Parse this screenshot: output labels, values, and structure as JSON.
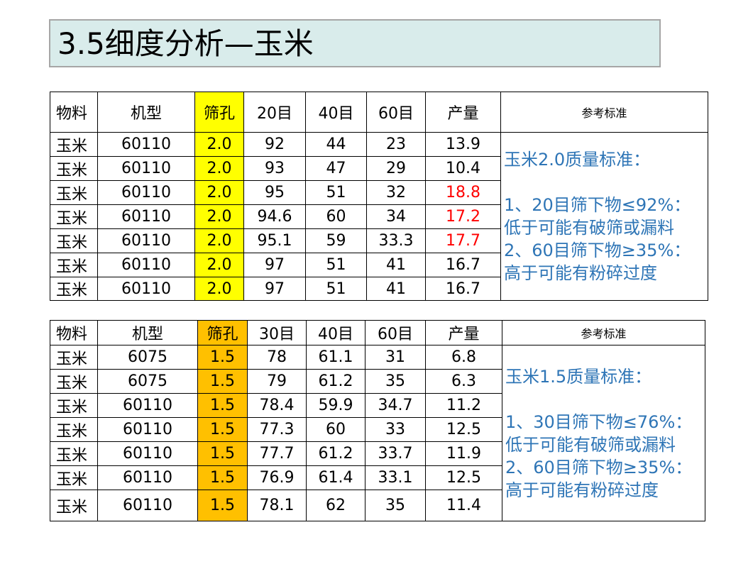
{
  "title": "3.5细度分析—玉米",
  "colors": {
    "title_bg": "#d9eceb",
    "sieve_yellow": "#ffff00",
    "sieve_orange": "#ffc000",
    "highlight_red": "#ff0000",
    "reference_blue": "#2e75b6"
  },
  "table1": {
    "headers": [
      "物料",
      "机型",
      "筛孔",
      "20目",
      "40目",
      "60目",
      "产量",
      "参考标准"
    ],
    "rows": [
      [
        "玉米",
        "60110",
        "2.0",
        "92",
        "44",
        "23",
        "13.9"
      ],
      [
        "玉米",
        "60110",
        "2.0",
        "93",
        "47",
        "29",
        "10.4"
      ],
      [
        "玉米",
        "60110",
        "2.0",
        "95",
        "51",
        "32",
        "18.8"
      ],
      [
        "玉米",
        "60110",
        "2.0",
        "94.6",
        "60",
        "34",
        "17.2"
      ],
      [
        "玉米",
        "60110",
        "2.0",
        "95.1",
        "59",
        "33.3",
        "17.7"
      ],
      [
        "玉米",
        "60110",
        "2.0",
        "97",
        "51",
        "41",
        "16.7"
      ],
      [
        "玉米",
        "60110",
        "2.0",
        "97",
        "51",
        "41",
        "16.7"
      ]
    ],
    "red_output_rows": [
      2,
      3,
      4
    ],
    "reference": {
      "line1": "玉米2.0质量标准：",
      "line2": "1、20目筛下物≤92%：",
      "line3": "低于可能有破筛或漏料",
      "line4": "2、60目筛下物≥35%：",
      "line5": "高于可能有粉碎过度"
    }
  },
  "table2": {
    "headers": [
      "物料",
      "机型",
      "筛孔",
      "30目",
      "40目",
      "60目",
      "产量",
      "参考标准"
    ],
    "rows": [
      [
        "玉米",
        "6075",
        "1.5",
        "78",
        "61.1",
        "31",
        "6.8"
      ],
      [
        "玉米",
        "6075",
        "1.5",
        "79",
        "61.2",
        "35",
        "6.3"
      ],
      [
        "玉米",
        "60110",
        "1.5",
        "78.4",
        "59.9",
        "34.7",
        "11.2"
      ],
      [
        "玉米",
        "60110",
        "1.5",
        "77.3",
        "60",
        "33",
        "12.5"
      ],
      [
        "玉米",
        "60110",
        "1.5",
        "77.7",
        "61.2",
        "33.7",
        "11.9"
      ],
      [
        "玉米",
        "60110",
        "1.5",
        "76.9",
        "61.4",
        "33.1",
        "12.5"
      ],
      [
        "玉米",
        "60110",
        "1.5",
        "78.1",
        "62",
        "35",
        "11.4"
      ]
    ],
    "reference": {
      "line1": "玉米1.5质量标准：",
      "line2": "1、30目筛下物≤76%：",
      "line3": "低于可能有破筛或漏料",
      "line4": "2、60目筛下物≥35%：",
      "line5": "高于可能有粉碎过度"
    }
  }
}
